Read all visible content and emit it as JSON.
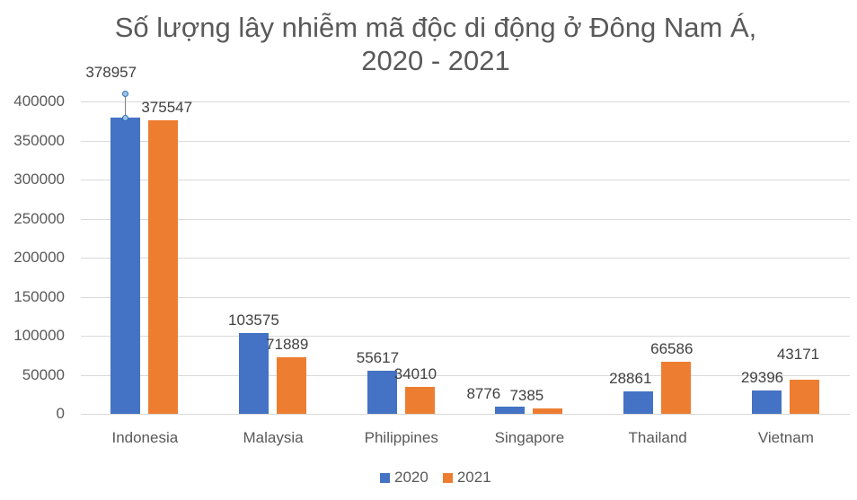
{
  "chart_data": {
    "type": "bar",
    "title": "Số lượng lây nhiễm mã độc di động ở Đông Nam Á, 2020 - 2021",
    "title_lines": [
      "Số lượng lây nhiễm mã độc di động ở Đông Nam Á,",
      "2020 - 2021"
    ],
    "xlabel": "",
    "ylabel": "",
    "categories": [
      "Indonesia",
      "Malaysia",
      "Philippines",
      "Singapore",
      "Thailand",
      "Vietnam"
    ],
    "series": [
      {
        "name": "2020",
        "color": "#4472c4",
        "values": [
          378957,
          103575,
          55617,
          8776,
          28861,
          29396
        ]
      },
      {
        "name": "2021",
        "color": "#ed7d31",
        "values": [
          375547,
          71889,
          34010,
          7385,
          66586,
          43171
        ]
      }
    ],
    "ylim": [
      0,
      400000
    ],
    "yticks": [
      "0",
      "50000",
      "100000",
      "150000",
      "200000",
      "250000",
      "300000",
      "350000",
      "400000"
    ],
    "grid": true,
    "legend_position": "bottom",
    "data_labels": true
  }
}
